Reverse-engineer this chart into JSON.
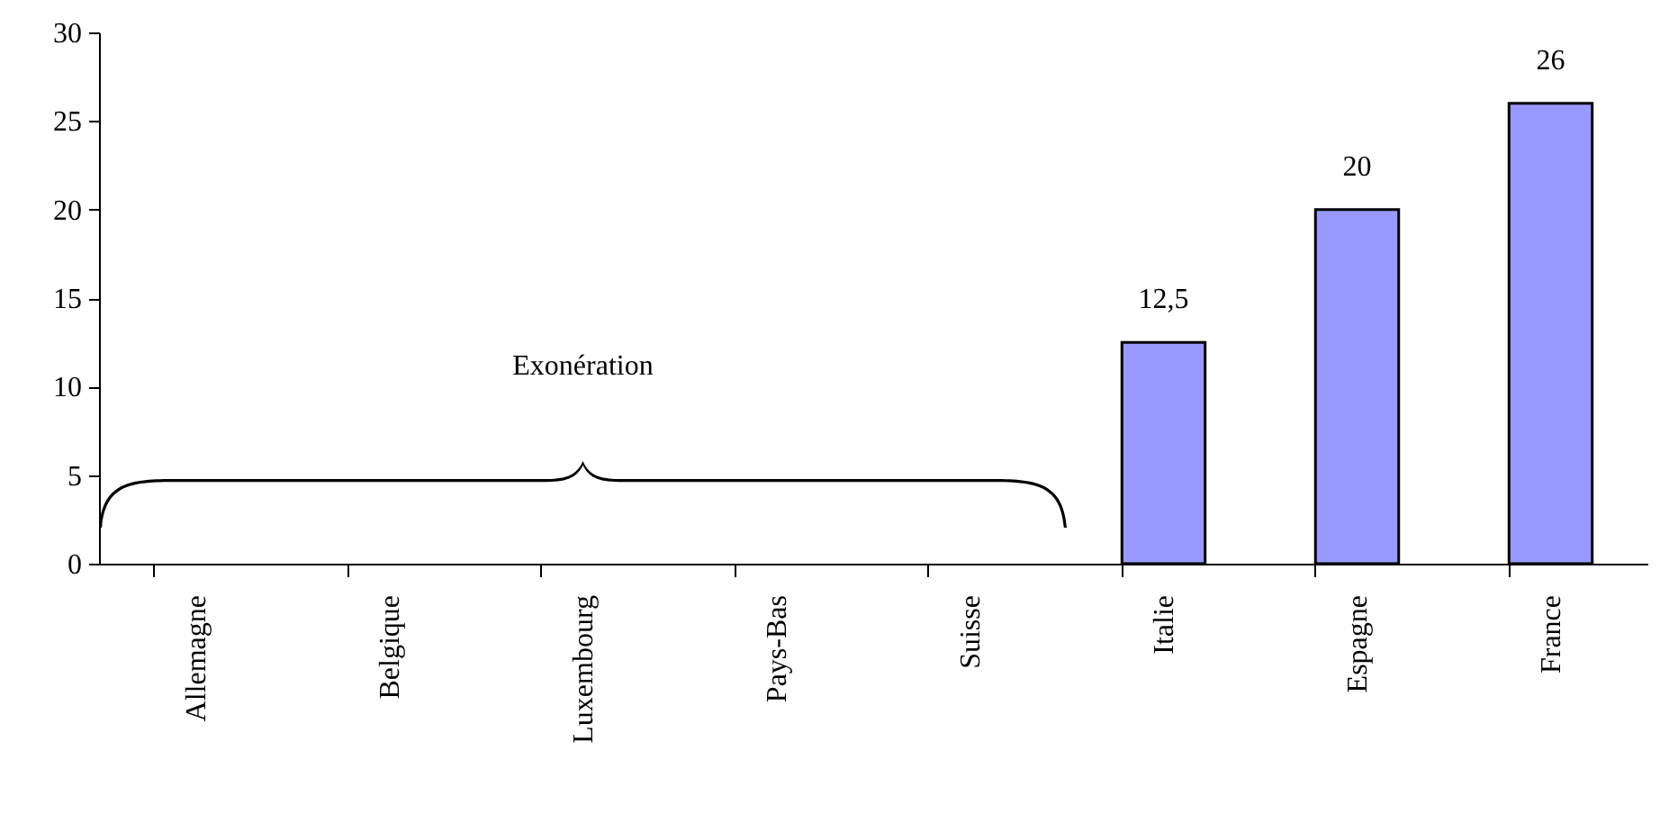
{
  "chart_data": {
    "type": "bar",
    "categories": [
      "Allemagne",
      "Belgique",
      "Luxembourg",
      "Pays-Bas",
      "Suisse",
      "Italie",
      "Espagne",
      "France"
    ],
    "values": [
      null,
      null,
      null,
      null,
      null,
      12.5,
      20,
      26
    ],
    "value_labels": [
      null,
      null,
      null,
      null,
      null,
      "12,5",
      "20",
      "26"
    ],
    "color": "#9999ff",
    "ylim": [
      0,
      30
    ],
    "yticks": [
      0,
      5,
      10,
      15,
      20,
      25,
      30
    ],
    "grid": false,
    "annotations": [
      "Exonération"
    ]
  }
}
